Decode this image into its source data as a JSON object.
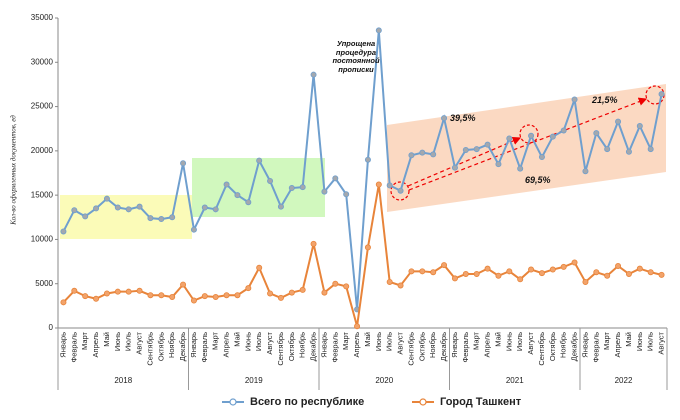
{
  "chart_data": {
    "type": "line",
    "ylabel": "Кол-во оформленных документов, ед",
    "categories": [
      "Январь",
      "Февраль",
      "Март",
      "Апрель",
      "Май",
      "Июнь",
      "Июль",
      "Август",
      "Сентябрь",
      "Октябрь",
      "Ноябрь",
      "Декабрь",
      "Январь",
      "Февраль",
      "Март",
      "Апрель",
      "Май",
      "Июнь",
      "Июль",
      "Август",
      "Сентябрь",
      "Октябрь",
      "Ноябрь",
      "Декабрь",
      "Январь",
      "Февраль",
      "Март",
      "Апрель",
      "Май",
      "Июнь",
      "Июль",
      "Август",
      "Сентябрь",
      "Октябрь",
      "Ноябрь",
      "Декабрь",
      "Январь",
      "Февраль",
      "Март",
      "Апрель",
      "Май",
      "Июнь",
      "Июль",
      "Август",
      "Сентябрь",
      "Октябрь",
      "Ноябрь",
      "Декабрь",
      "Январь",
      "Февраль",
      "Март",
      "Апрель",
      "Май",
      "Июнь",
      "Июль",
      "Август"
    ],
    "year_labels": [
      "2018",
      "2019",
      "2020",
      "2021",
      "2022"
    ],
    "series": [
      {
        "name": "Всего по республике",
        "color": "#6f9fce",
        "values": [
          10900,
          13300,
          12600,
          13500,
          14600,
          13600,
          13400,
          13700,
          12400,
          12300,
          12500,
          18600,
          11100,
          13600,
          13400,
          16200,
          15000,
          14200,
          18900,
          16600,
          13700,
          15800,
          15900,
          28600,
          15400,
          16900,
          15100,
          2100,
          19000,
          33600,
          16100,
          15500,
          19500,
          19800,
          19600,
          23700,
          18100,
          20100,
          20200,
          20700,
          18500,
          21400,
          18000,
          21700,
          19300,
          21600,
          22300,
          25800,
          17700,
          22000,
          20200,
          23300,
          19900,
          22800,
          20200,
          26400
        ]
      },
      {
        "name": "Город Ташкент",
        "color": "#e8843a",
        "values": [
          2900,
          4200,
          3600,
          3300,
          3900,
          4100,
          4100,
          4200,
          3700,
          3700,
          3500,
          4900,
          3100,
          3600,
          3500,
          3700,
          3700,
          4500,
          6800,
          3900,
          3400,
          4000,
          4300,
          9500,
          4000,
          5000,
          4700,
          200,
          9100,
          16200,
          5200,
          4800,
          6400,
          6400,
          6300,
          7100,
          5600,
          6100,
          6100,
          6700,
          5900,
          6400,
          5500,
          6600,
          6200,
          6600,
          6900,
          7400,
          5200,
          6300,
          5900,
          7000,
          6100,
          6700,
          6300,
          6000
        ]
      }
    ],
    "ylim": [
      0,
      35000
    ],
    "yticks": [
      0,
      5000,
      10000,
      15000,
      20000,
      25000,
      30000,
      35000
    ],
    "grid": false,
    "annotations": [
      "Упрощена процедура постоянной прописки",
      "39,5%",
      "69,5%",
      "21,5%"
    ]
  }
}
